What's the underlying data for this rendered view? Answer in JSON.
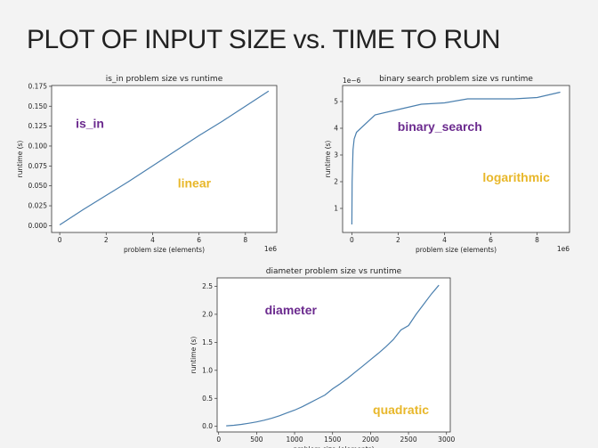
{
  "slide": {
    "title": "PLOT OF INPUT SIZE vs. TIME TO RUN"
  },
  "chart_data": [
    {
      "id": "is_in",
      "type": "line",
      "title": "is_in problem size vs runtime",
      "xlabel": "problem size (elements)",
      "ylabel": "runtime (s)",
      "xlim": [
        -350000,
        9350000
      ],
      "ylim": [
        -0.0085,
        0.176
      ],
      "xticks": [
        0,
        2000000,
        4000000,
        6000000,
        8000000
      ],
      "xtick_labels": [
        "0",
        "2",
        "4",
        "6",
        "8"
      ],
      "yticks": [
        0,
        0.025,
        0.05,
        0.075,
        0.1,
        0.125,
        0.15,
        0.175
      ],
      "ytick_labels": [
        "0.000",
        "0.025",
        "0.050",
        "0.075",
        "0.100",
        "0.125",
        "0.150",
        "0.175"
      ],
      "x_offset_label": "1e6",
      "y_offset_label": "",
      "color": "#4a7fae",
      "annotations": [
        {
          "text": "is_in",
          "x": 1300000,
          "y": 0.123,
          "color": "#6b2a8e"
        },
        {
          "text": "linear",
          "x": 5800000,
          "y": 0.048,
          "color": "#e8b72a"
        }
      ],
      "series": [
        {
          "name": "is_in",
          "x": [
            0,
            1000000,
            2000000,
            3000000,
            4000000,
            5000000,
            6000000,
            7000000,
            8000000,
            9000000
          ],
          "y": [
            0.001,
            0.02,
            0.038,
            0.056,
            0.075,
            0.094,
            0.113,
            0.131,
            0.15,
            0.169
          ]
        }
      ]
    },
    {
      "id": "binary_search",
      "type": "line",
      "title": "binary search problem size vs runtime",
      "xlabel": "problem size (elements)",
      "ylabel": "runtime (s)",
      "xlim": [
        -400000,
        9400000
      ],
      "ylim": [
        0.1,
        5.6
      ],
      "xticks": [
        0,
        2000000,
        4000000,
        6000000,
        8000000
      ],
      "xtick_labels": [
        "0",
        "2",
        "4",
        "6",
        "8"
      ],
      "yticks": [
        1,
        2,
        3,
        4,
        5
      ],
      "ytick_labels": [
        "1",
        "2",
        "3",
        "4",
        "5"
      ],
      "x_offset_label": "1e6",
      "y_offset_label": "1e−6",
      "color": "#4a7fae",
      "annotations": [
        {
          "text": "binary_search",
          "x": 3800000,
          "y": 3.9,
          "color": "#6b2a8e"
        },
        {
          "text": "logarithmic",
          "x": 7100000,
          "y": 2.0,
          "color": "#e8b72a"
        }
      ],
      "series": [
        {
          "name": "binary_search",
          "x": [
            0,
            10000,
            50000,
            100000,
            200000,
            1000000,
            2000000,
            3000000,
            4000000,
            5000000,
            6000000,
            7000000,
            8000000,
            9000000
          ],
          "y": [
            0.4,
            2.0,
            3.2,
            3.6,
            3.85,
            4.5,
            4.7,
            4.9,
            4.95,
            5.1,
            5.1,
            5.1,
            5.15,
            5.35
          ]
        }
      ]
    },
    {
      "id": "diameter",
      "type": "line",
      "title": "diameter problem size vs runtime",
      "xlabel": "problem size (elements)",
      "ylabel": "runtime (s)",
      "xlim": [
        -20,
        3050
      ],
      "ylim": [
        -0.1,
        2.65
      ],
      "xticks": [
        0,
        500,
        1000,
        1500,
        2000,
        2500,
        3000
      ],
      "xtick_labels": [
        "0",
        "500",
        "1000",
        "1500",
        "2000",
        "2500",
        "3000"
      ],
      "yticks": [
        0,
        0.5,
        1.0,
        1.5,
        2.0,
        2.5
      ],
      "ytick_labels": [
        "0.0",
        "0.5",
        "1.0",
        "1.5",
        "2.0",
        "2.5"
      ],
      "x_offset_label": "",
      "y_offset_label": "",
      "color": "#4a7fae",
      "annotations": [
        {
          "text": "diameter",
          "x": 950,
          "y": 2.0,
          "color": "#6b2a8e"
        },
        {
          "text": "quadratic",
          "x": 2400,
          "y": 0.22,
          "color": "#e8b72a"
        }
      ],
      "series": [
        {
          "name": "diameter",
          "x": [
            100,
            200,
            300,
            400,
            500,
            600,
            700,
            800,
            900,
            1000,
            1100,
            1200,
            1300,
            1400,
            1500,
            1600,
            1700,
            1800,
            1900,
            2000,
            2100,
            2200,
            2300,
            2400,
            2500,
            2600,
            2700,
            2800,
            2900
          ],
          "y": [
            0.01,
            0.02,
            0.035,
            0.055,
            0.08,
            0.11,
            0.145,
            0.19,
            0.24,
            0.29,
            0.35,
            0.42,
            0.49,
            0.56,
            0.67,
            0.76,
            0.86,
            0.97,
            1.08,
            1.19,
            1.3,
            1.42,
            1.55,
            1.72,
            1.8,
            2.0,
            2.18,
            2.36,
            2.52
          ]
        }
      ]
    }
  ]
}
